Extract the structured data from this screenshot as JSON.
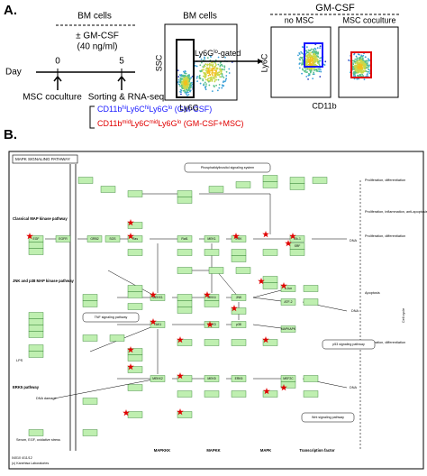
{
  "panel_a": {
    "label": "A.",
    "culture": "BM cells",
    "treatment": "± GM-CSF",
    "dose": "(40 ng/ml)",
    "day_label": "Day",
    "day_start": "0",
    "day_end": "5",
    "start_event": "MSC coculture",
    "end_event": "Sorting & RNA-seq",
    "groups": [
      {
        "parts": [
          "CD11b",
          "hi",
          "Ly6C",
          "hi",
          "Ly6G",
          "lo",
          " (GM-CSF)"
        ],
        "color": "#1a1aff"
      },
      {
        "parts": [
          "CD11b",
          "mid",
          "Ly6C",
          "mid",
          "Ly6G",
          "lo",
          " (GM-CSF+MSC)"
        ],
        "color": "#e00000"
      }
    ],
    "plot1": {
      "title": "BM cells",
      "y_axis": "SSC",
      "x_axis": "Ly6G"
    },
    "gate": [
      "Ly6G",
      "lo",
      "-gated"
    ],
    "plot2": {
      "header": "GM-CSF",
      "left_title": "no MSC",
      "right_title": "MSC coculture",
      "y_axis": "Ly6C",
      "x_axis": "CD11b"
    }
  },
  "panel_b": {
    "label": "B.",
    "title": "MAPK SIGNALING PATHWAY",
    "side_labels": [
      "Classical MAP kinase pathway",
      "JNK and p38 MAP kinase pathway",
      "ERK5 pathway"
    ],
    "bottom_labels": [
      "MAPKKK",
      "MAPKK",
      "MAPK",
      "Transcription factor"
    ],
    "outputs": [
      "Proliferation, differentiation",
      "Proliferation, inflammation, anti-apoptosis",
      "Proliferation, differentiation",
      "Apoptosis",
      "Proliferation, differentiation",
      "Cell cycle"
    ],
    "pathways": [
      "Phosphatidylinositol signaling system",
      "TNF signaling pathway",
      "p53 signaling pathway",
      "Wnt signaling pathway"
    ],
    "inputs": [
      "LPS",
      "DNA damage",
      "Serum, EGF, oxidative stress"
    ],
    "dna": [
      "DNA",
      "DNA",
      "DNA"
    ],
    "nodes": [
      "EGF",
      "EGFR",
      "GRB2",
      "SOS",
      "Ras",
      "Raf1",
      "MEK1",
      "ERK",
      "Elk-1",
      "SRF",
      "MEKK1",
      "MKK4",
      "JNK",
      "c-Jun",
      "ATF-2",
      "TAK1",
      "MKK3",
      "p38",
      "MAPKAPK",
      "MEKK2",
      "MEK5",
      "ERK5",
      "MEF2C"
    ],
    "footer": [
      "04010 4/11/12",
      "(c) Kanehisa Laboratories"
    ]
  }
}
